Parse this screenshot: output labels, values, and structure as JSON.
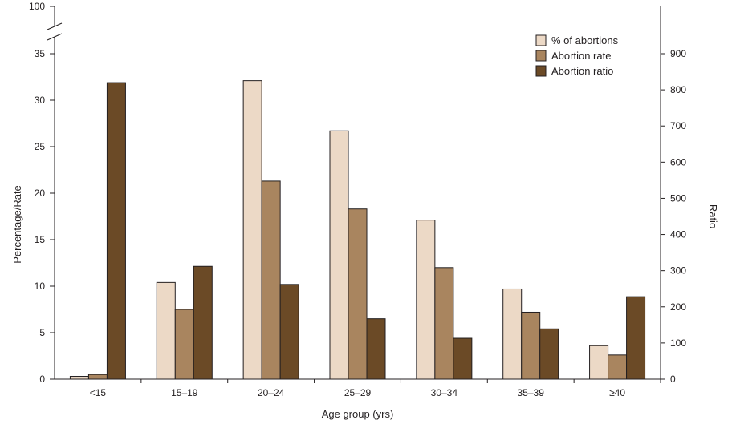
{
  "chart_data": {
    "type": "bar",
    "xlabel": "Age group (yrs)",
    "ylabel": "Percentage/Rate",
    "y2label": "Ratio",
    "categories": [
      "<15",
      "15–19",
      "20–24",
      "25–29",
      "30–34",
      "35–39",
      "≥40"
    ],
    "series": [
      {
        "name": "% of abortions",
        "axis": "left",
        "color": "#ecd9c6",
        "values": [
          0.3,
          10.4,
          32.1,
          26.7,
          17.1,
          9.7,
          3.6
        ]
      },
      {
        "name": "Abortion rate",
        "axis": "left",
        "color": "#a9855f",
        "values": [
          0.5,
          7.5,
          21.3,
          18.3,
          12.0,
          7.2,
          2.6
        ]
      },
      {
        "name": "Abortion ratio",
        "axis": "right",
        "color": "#6b4a26",
        "values": [
          820,
          312,
          262,
          167,
          113,
          139,
          228
        ]
      }
    ],
    "ylim": [
      0,
      35
    ],
    "y_break_top_label": "100",
    "yticks": [
      "0",
      "5",
      "10",
      "15",
      "20",
      "25",
      "30",
      "35"
    ],
    "y2lim": [
      0,
      900
    ],
    "y2ticks": [
      "0",
      "100",
      "200",
      "300",
      "400",
      "500",
      "600",
      "700",
      "800",
      "900"
    ],
    "legend_position": "top-right",
    "grid": false
  }
}
